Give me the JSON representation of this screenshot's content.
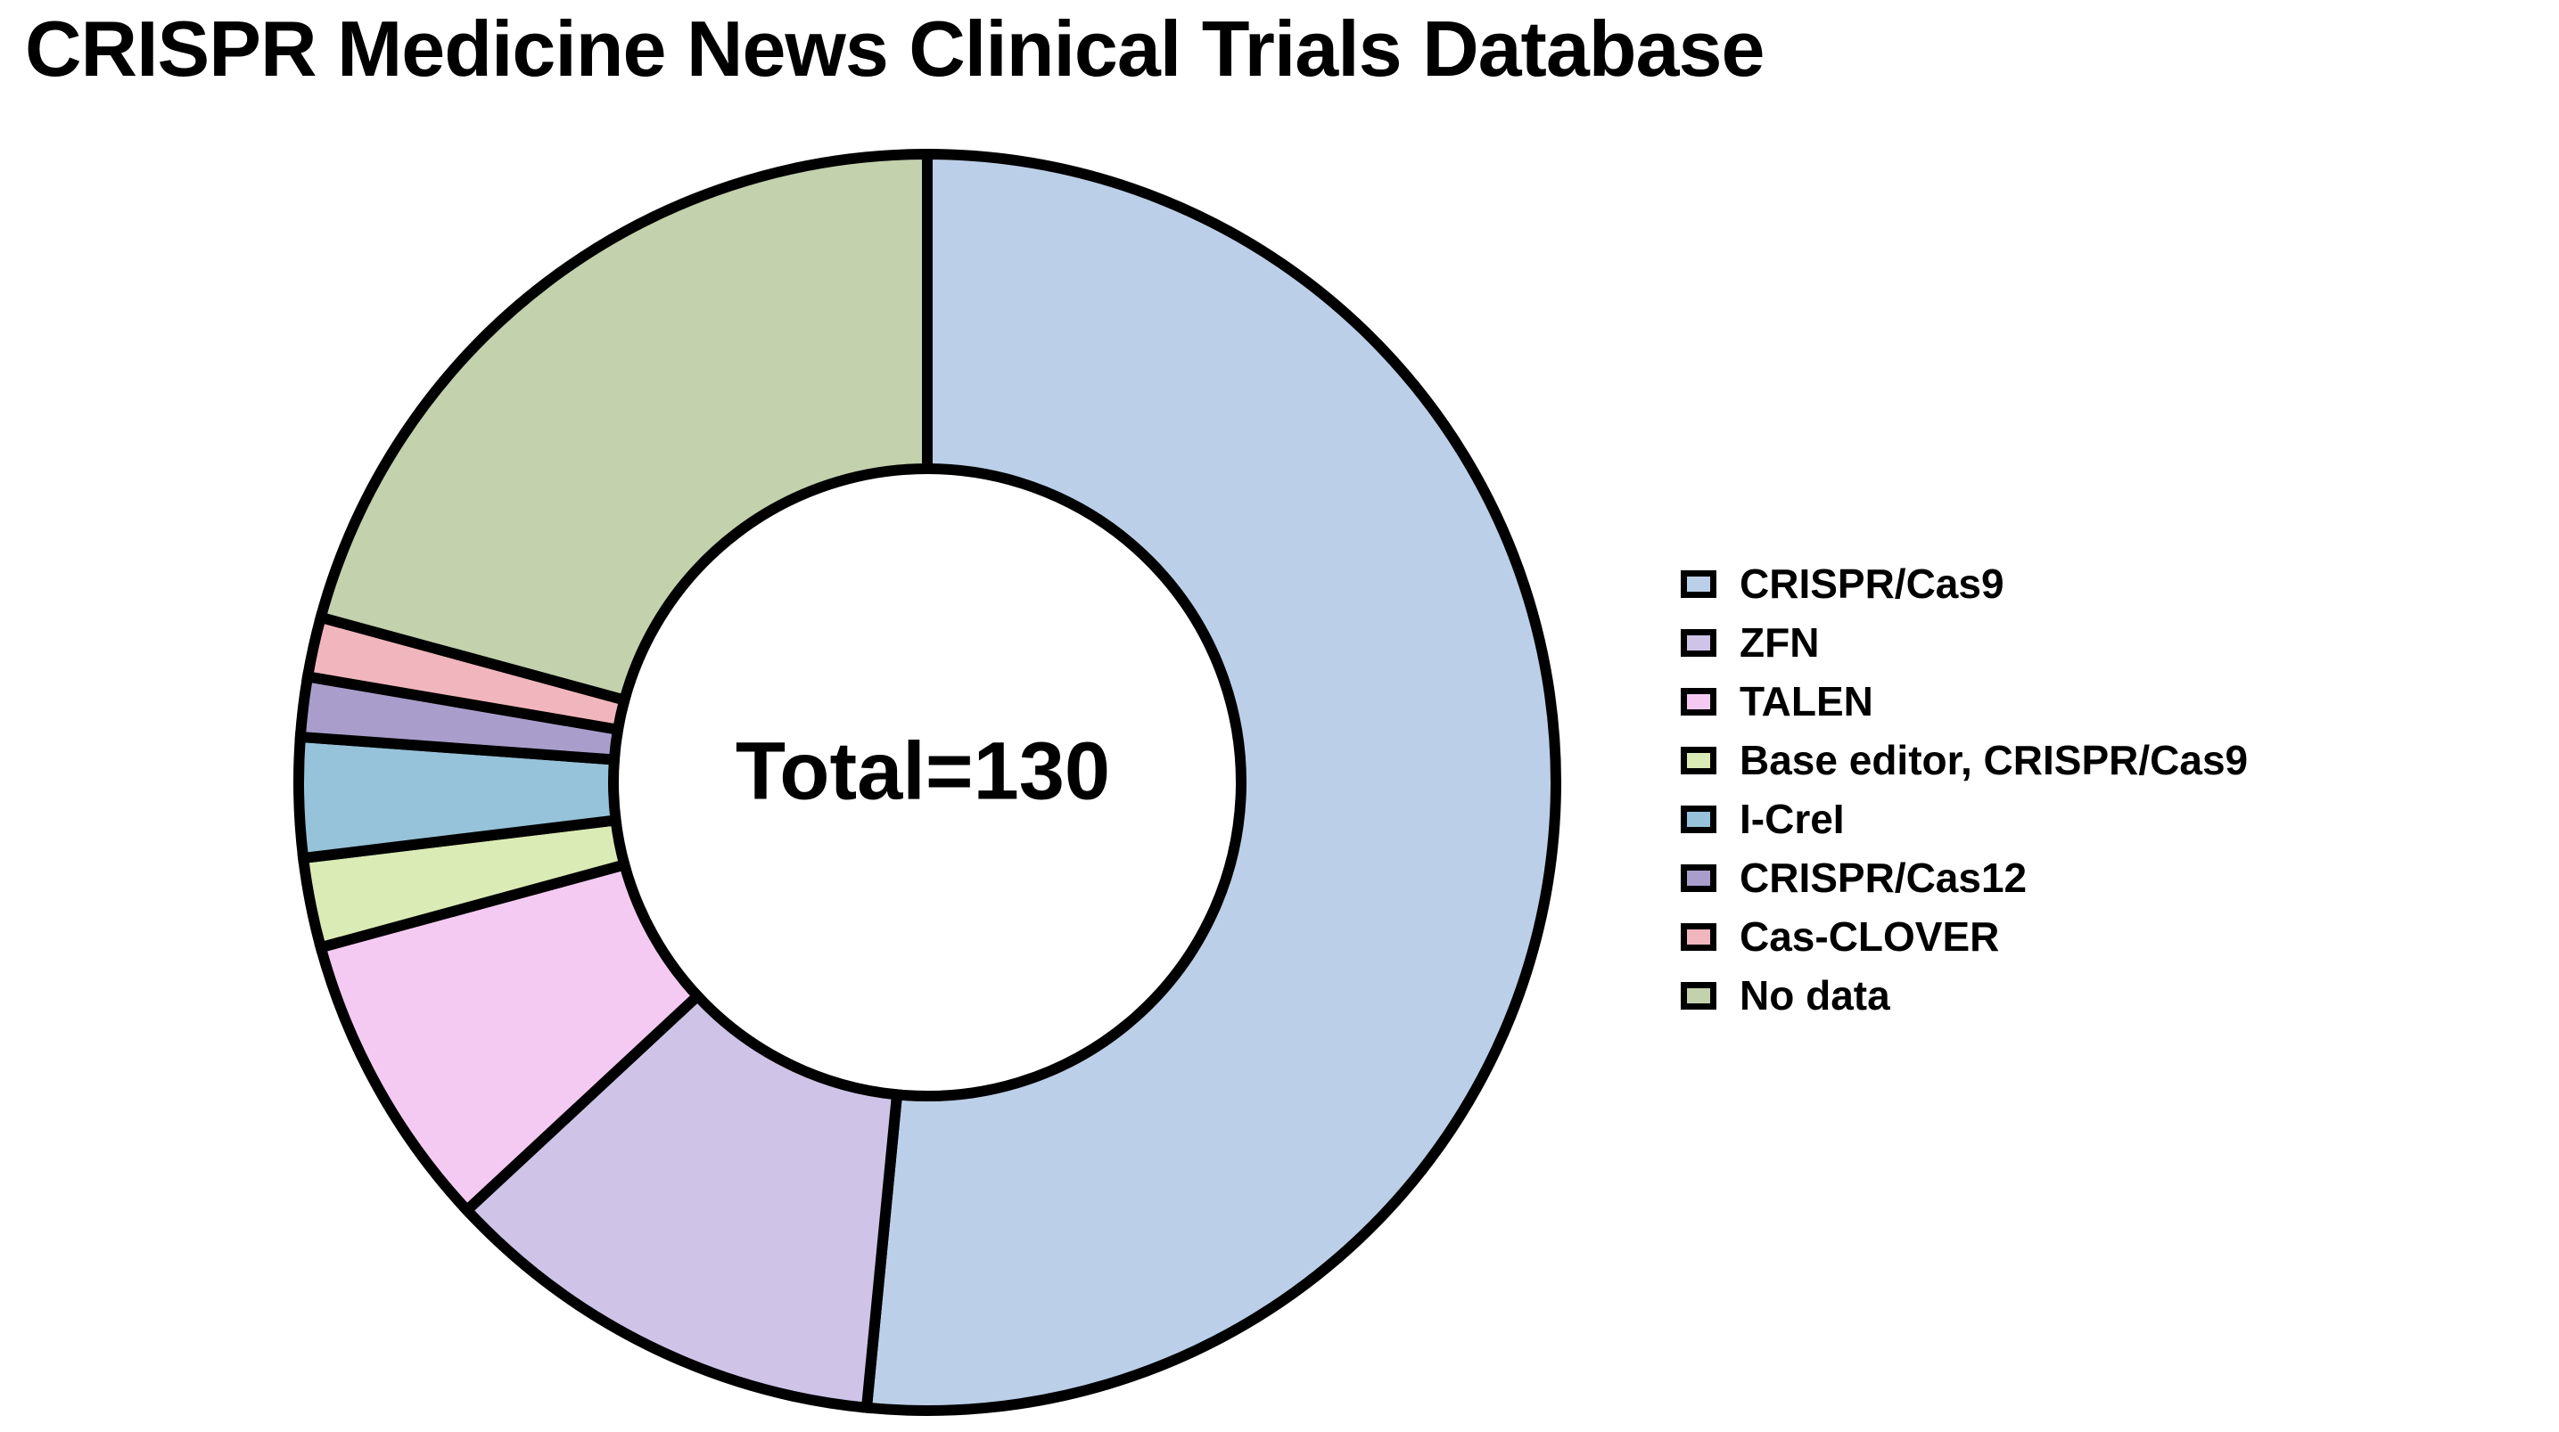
{
  "title": "CRISPR Medicine News Clinical Trials Database",
  "center_label": "Total=130",
  "total": 130,
  "chart_data": {
    "type": "pie",
    "subtype": "donut",
    "title": "CRISPR Medicine News Clinical Trials Database",
    "center_label": "Total=130",
    "total": 130,
    "categories": [
      "CRISPR/Cas9",
      "ZFN",
      "TALEN",
      "Base editor, CRISPR/Cas9",
      "I-CreI",
      "CRISPR/Cas12",
      "Cas-CLOVER",
      "No data"
    ],
    "values": [
      67,
      15,
      10,
      3,
      4,
      2,
      2,
      27
    ],
    "colors": [
      "#bccfe8",
      "#cfc4e8",
      "#f4caf2",
      "#daebb5",
      "#96c3d9",
      "#a99ecb",
      "#f1b6bd",
      "#c3d1ad"
    ],
    "start_angle_deg": 0,
    "direction": "clockwise",
    "legend_position": "right",
    "stroke_color": "#000000",
    "background": "#ffffff"
  },
  "legend": {
    "items": [
      {
        "label": "CRISPR/Cas9",
        "color": "#bccfe8"
      },
      {
        "label": "ZFN",
        "color": "#cfc4e8"
      },
      {
        "label": "TALEN",
        "color": "#f4caf2"
      },
      {
        "label": "Base editor, CRISPR/Cas9",
        "color": "#daebb5"
      },
      {
        "label": "I-CreI",
        "color": "#96c3d9"
      },
      {
        "label": "CRISPR/Cas12",
        "color": "#a99ecb"
      },
      {
        "label": "Cas-CLOVER",
        "color": "#f1b6bd"
      },
      {
        "label": "No data",
        "color": "#c3d1ad"
      }
    ]
  }
}
